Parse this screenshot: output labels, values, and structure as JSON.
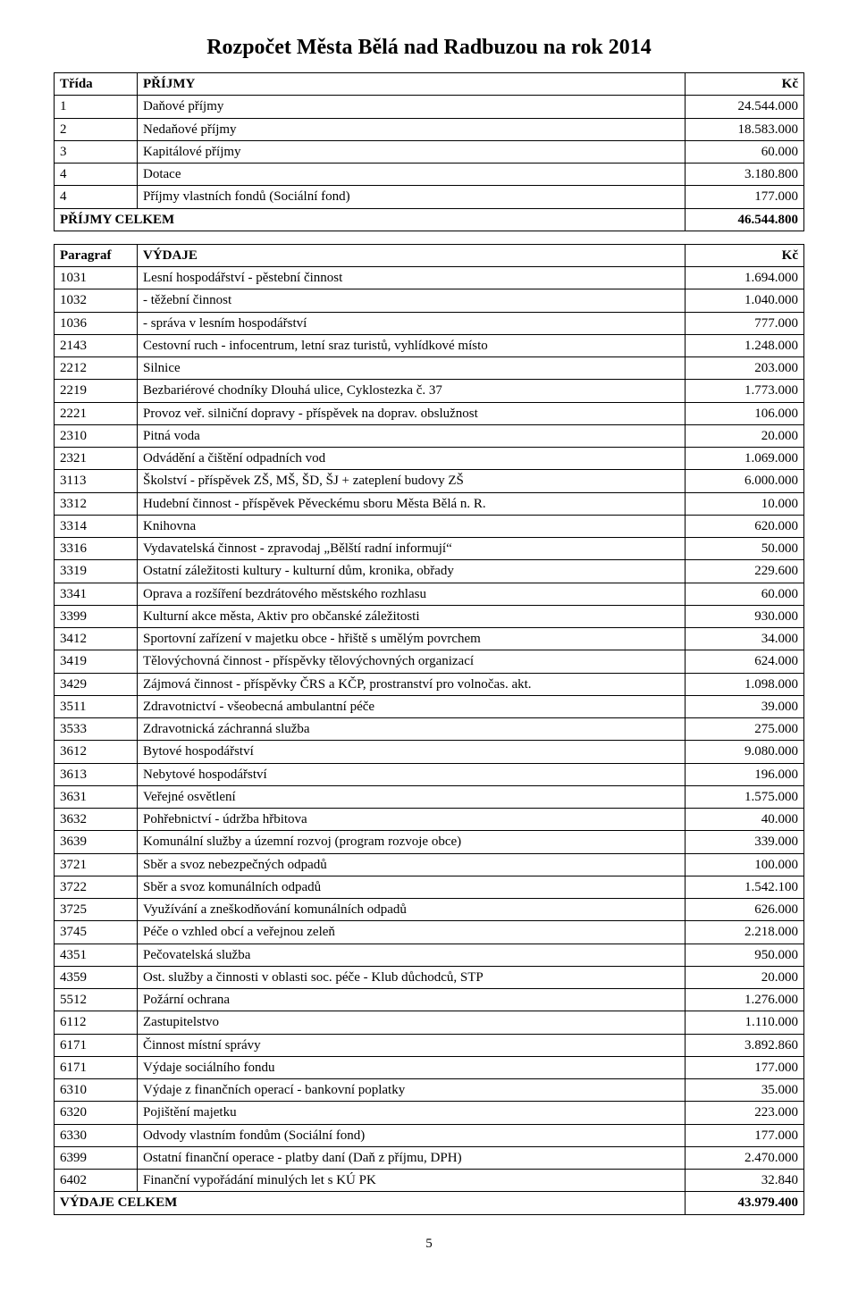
{
  "title": "Rozpočet Města Bělá nad Radbuzou na rok 2014",
  "income_header": {
    "c1": "Třída",
    "c2": "PŘÍJMY",
    "c3": "Kč"
  },
  "income_rows": [
    {
      "c1": "1",
      "c2": "Daňové příjmy",
      "c3": "24.544.000"
    },
    {
      "c1": "2",
      "c2": "Nedaňové příjmy",
      "c3": "18.583.000"
    },
    {
      "c1": "3",
      "c2": "Kapitálové příjmy",
      "c3": "60.000"
    },
    {
      "c1": "4",
      "c2": "Dotace",
      "c3": "3.180.800"
    },
    {
      "c1": "4",
      "c2": "Příjmy vlastních fondů (Sociální fond)",
      "c3": "177.000"
    }
  ],
  "income_total": {
    "c2": "PŘÍJMY CELKEM",
    "c3": "46.544.800"
  },
  "expense_header": {
    "c1": "Paragraf",
    "c2": "VÝDAJE",
    "c3": "Kč"
  },
  "expense_rows": [
    {
      "c1": "1031",
      "c2": "Lesní hospodářství - pěstební činnost",
      "c3": "1.694.000"
    },
    {
      "c1": "1032",
      "c2": "                           - těžební činnost",
      "c3": "1.040.000"
    },
    {
      "c1": "1036",
      "c2": "                           - správa v lesním hospodářství",
      "c3": "777.000"
    },
    {
      "c1": "2143",
      "c2": "Cestovní ruch - infocentrum, letní sraz turistů, vyhlídkové místo",
      "c3": "1.248.000"
    },
    {
      "c1": "2212",
      "c2": "Silnice",
      "c3": "203.000"
    },
    {
      "c1": "2219",
      "c2": "Bezbariérové chodníky Dlouhá ulice, Cyklostezka č. 37",
      "c3": "1.773.000"
    },
    {
      "c1": "2221",
      "c2": "Provoz veř. silniční dopravy - příspěvek na doprav. obslužnost",
      "c3": "106.000"
    },
    {
      "c1": "2310",
      "c2": "Pitná voda",
      "c3": "20.000"
    },
    {
      "c1": "2321",
      "c2": "Odvádění a čištění odpadních vod",
      "c3": "1.069.000"
    },
    {
      "c1": "3113",
      "c2": "Školství - příspěvek ZŠ, MŠ, ŠD, ŠJ + zateplení budovy ZŠ",
      "c3": "6.000.000"
    },
    {
      "c1": "3312",
      "c2": "Hudební činnost - příspěvek Pěveckému sboru Města Bělá n. R.",
      "c3": "10.000"
    },
    {
      "c1": "3314",
      "c2": "Knihovna",
      "c3": "620.000"
    },
    {
      "c1": "3316",
      "c2": "Vydavatelská činnost - zpravodaj „Bělští radní informují“",
      "c3": "50.000"
    },
    {
      "c1": "3319",
      "c2": "Ostatní záležitosti kultury - kulturní dům, kronika, obřady",
      "c3": "229.600"
    },
    {
      "c1": "3341",
      "c2": "Oprava a rozšíření bezdrátového městského rozhlasu",
      "c3": "60.000"
    },
    {
      "c1": "3399",
      "c2": "Kulturní akce města, Aktiv pro občanské záležitosti",
      "c3": "930.000"
    },
    {
      "c1": "3412",
      "c2": "Sportovní zařízení v majetku obce - hřiště s umělým povrchem",
      "c3": "34.000"
    },
    {
      "c1": "3419",
      "c2": "Tělovýchovná činnost - příspěvky tělovýchovných organizací",
      "c3": "624.000"
    },
    {
      "c1": "3429",
      "c2": "Zájmová činnost - příspěvky ČRS a KČP, prostranství pro volnočas. akt.",
      "c3": "1.098.000"
    },
    {
      "c1": "3511",
      "c2": "Zdravotnictví - všeobecná ambulantní péče",
      "c3": "39.000"
    },
    {
      "c1": "3533",
      "c2": "Zdravotnická záchranná služba",
      "c3": "275.000"
    },
    {
      "c1": "3612",
      "c2": "Bytové hospodářství",
      "c3": "9.080.000"
    },
    {
      "c1": "3613",
      "c2": "Nebytové hospodářství",
      "c3": "196.000"
    },
    {
      "c1": "3631",
      "c2": "Veřejné osvětlení",
      "c3": "1.575.000"
    },
    {
      "c1": "3632",
      "c2": "Pohřebnictví - údržba hřbitova",
      "c3": "40.000"
    },
    {
      "c1": "3639",
      "c2": "Komunální služby a územní rozvoj (program rozvoje obce)",
      "c3": "339.000"
    },
    {
      "c1": "3721",
      "c2": "Sběr a svoz nebezpečných odpadů",
      "c3": "100.000"
    },
    {
      "c1": "3722",
      "c2": "Sběr a svoz komunálních odpadů",
      "c3": "1.542.100"
    },
    {
      "c1": "3725",
      "c2": "Využívání a zneškodňování komunálních odpadů",
      "c3": "626.000"
    },
    {
      "c1": "3745",
      "c2": "Péče o vzhled obcí a veřejnou zeleň",
      "c3": "2.218.000"
    },
    {
      "c1": "4351",
      "c2": "Pečovatelská služba",
      "c3": "950.000"
    },
    {
      "c1": "4359",
      "c2": "Ost. služby a činnosti v oblasti soc. péče - Klub důchodců, STP",
      "c3": "20.000"
    },
    {
      "c1": "5512",
      "c2": "Požární ochrana",
      "c3": "1.276.000"
    },
    {
      "c1": "6112",
      "c2": "Zastupitelstvo",
      "c3": "1.110.000"
    },
    {
      "c1": "6171",
      "c2": "Činnost místní správy",
      "c3": "3.892.860"
    },
    {
      "c1": "6171",
      "c2": "Výdaje sociálního fondu",
      "c3": "177.000"
    },
    {
      "c1": "6310",
      "c2": "Výdaje z finančních operací - bankovní poplatky",
      "c3": "35.000"
    },
    {
      "c1": "6320",
      "c2": "Pojištění majetku",
      "c3": "223.000"
    },
    {
      "c1": "6330",
      "c2": "Odvody vlastním fondům (Sociální fond)",
      "c3": "177.000"
    },
    {
      "c1": "6399",
      "c2": "Ostatní finanční operace - platby daní (Daň z příjmu, DPH)",
      "c3": "2.470.000"
    },
    {
      "c1": "6402",
      "c2": "Finanční vypořádání minulých let s KÚ PK",
      "c3": "32.840"
    }
  ],
  "expense_total": {
    "c2": "VÝDAJE CELKEM",
    "c3": "43.979.400"
  },
  "page_number": "5"
}
